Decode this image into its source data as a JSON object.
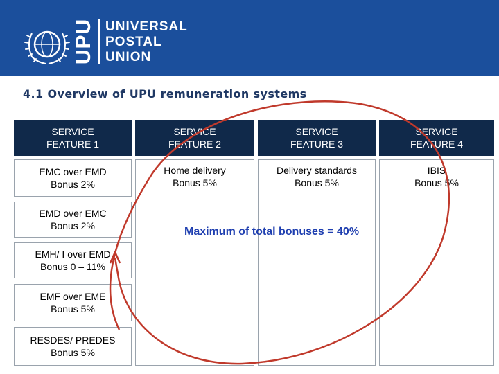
{
  "logo": {
    "vertical_text": "UPU",
    "lines": [
      "UNIVERSAL",
      "POSTAL",
      "UNION"
    ],
    "emblem_icon": "upu-emblem-icon"
  },
  "title": "4.1  Overview of UPU remuneration systems",
  "headers": [
    "SERVICE\nFEATURE 1",
    "SERVICE\nFEATURE 2",
    "SERVICE\nFEATURE 3",
    "SERVICE\nFEATURE 4"
  ],
  "feature1_items": [
    "EMC over EMD\nBonus 2%",
    "EMD over EMC\nBonus 2%",
    "EMH/ I over EMD\nBonus 0 – 11%",
    "EMF over EME\nBonus 5%",
    "RESDES/ PREDES\nBonus 5%"
  ],
  "feature2_text": "Home delivery\nBonus 5%",
  "feature3_text": "Delivery standards\nBonus 5%",
  "feature4_text": "IBIS\nBonus 5%",
  "max_note": "Maximum of total bonuses = 40%",
  "colors": {
    "header_bar": "#1b4f9c",
    "table_header": "#10294a",
    "annotation": "#c0392b",
    "note": "#1f3fb0"
  }
}
